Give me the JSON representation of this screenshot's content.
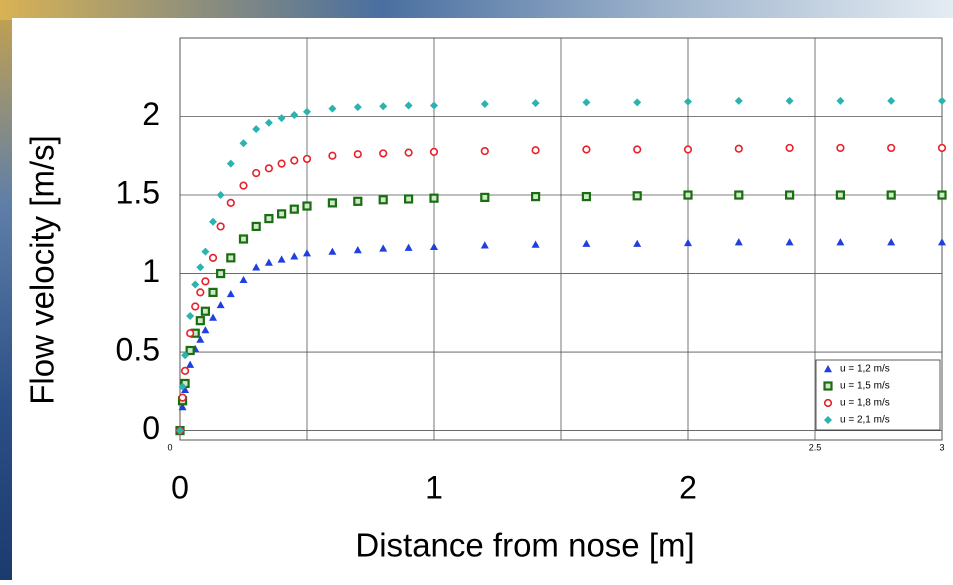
{
  "chart_data": {
    "type": "scatter",
    "y_label": "Flow velocity  [m/s]",
    "x_label": "Distance from nose [m]",
    "x": [
      0,
      0.01,
      0.02,
      0.04,
      0.06,
      0.08,
      0.1,
      0.13,
      0.16,
      0.2,
      0.25,
      0.3,
      0.35,
      0.4,
      0.45,
      0.5,
      0.6,
      0.7,
      0.8,
      0.9,
      1.0,
      1.2,
      1.4,
      1.6,
      1.8,
      2.0,
      2.2,
      2.4,
      2.6,
      2.8,
      3.0
    ],
    "series": [
      {
        "name": "u = 1,2 m/s",
        "color": "#1f3fe0",
        "marker": "triangle",
        "values": [
          0,
          0.15,
          0.26,
          0.42,
          0.52,
          0.58,
          0.64,
          0.72,
          0.8,
          0.87,
          0.96,
          1.04,
          1.07,
          1.09,
          1.11,
          1.13,
          1.14,
          1.15,
          1.16,
          1.165,
          1.17,
          1.18,
          1.185,
          1.19,
          1.19,
          1.195,
          1.2,
          1.2,
          1.2,
          1.2,
          1.2
        ]
      },
      {
        "name": "u = 1,5 m/s",
        "color": "#1a6e12",
        "marker": "square",
        "values": [
          0,
          0.19,
          0.3,
          0.51,
          0.62,
          0.7,
          0.76,
          0.88,
          1.0,
          1.1,
          1.22,
          1.3,
          1.35,
          1.38,
          1.41,
          1.43,
          1.45,
          1.46,
          1.47,
          1.475,
          1.48,
          1.485,
          1.49,
          1.49,
          1.495,
          1.5,
          1.5,
          1.5,
          1.5,
          1.5,
          1.5
        ]
      },
      {
        "name": "u = 1,8 m/s",
        "color": "#e8202a",
        "marker": "circle",
        "values": [
          0,
          0.21,
          0.38,
          0.62,
          0.79,
          0.88,
          0.95,
          1.1,
          1.3,
          1.45,
          1.56,
          1.64,
          1.67,
          1.7,
          1.72,
          1.73,
          1.75,
          1.76,
          1.765,
          1.77,
          1.775,
          1.78,
          1.785,
          1.79,
          1.79,
          1.79,
          1.795,
          1.8,
          1.8,
          1.8,
          1.8
        ]
      },
      {
        "name": "u = 2,1 m/s",
        "color": "#2bb3b0",
        "marker": "diamond",
        "values": [
          0,
          0.28,
          0.48,
          0.73,
          0.93,
          1.04,
          1.14,
          1.33,
          1.5,
          1.7,
          1.83,
          1.92,
          1.96,
          1.99,
          2.01,
          2.03,
          2.05,
          2.06,
          2.065,
          2.07,
          2.07,
          2.08,
          2.085,
          2.09,
          2.09,
          2.095,
          2.1,
          2.1,
          2.1,
          2.1,
          2.1
        ]
      }
    ],
    "xlim": [
      0,
      3
    ],
    "ylim": [
      -0.06,
      2.5
    ],
    "xticks": [
      0,
      1,
      2
    ],
    "small_xticks": [
      0,
      2.5,
      3
    ],
    "xgrid": [
      0.5,
      1.5
    ],
    "yticks": [
      0,
      0.5,
      1,
      1.5,
      2
    ],
    "grid": true,
    "legend": "lower right"
  }
}
